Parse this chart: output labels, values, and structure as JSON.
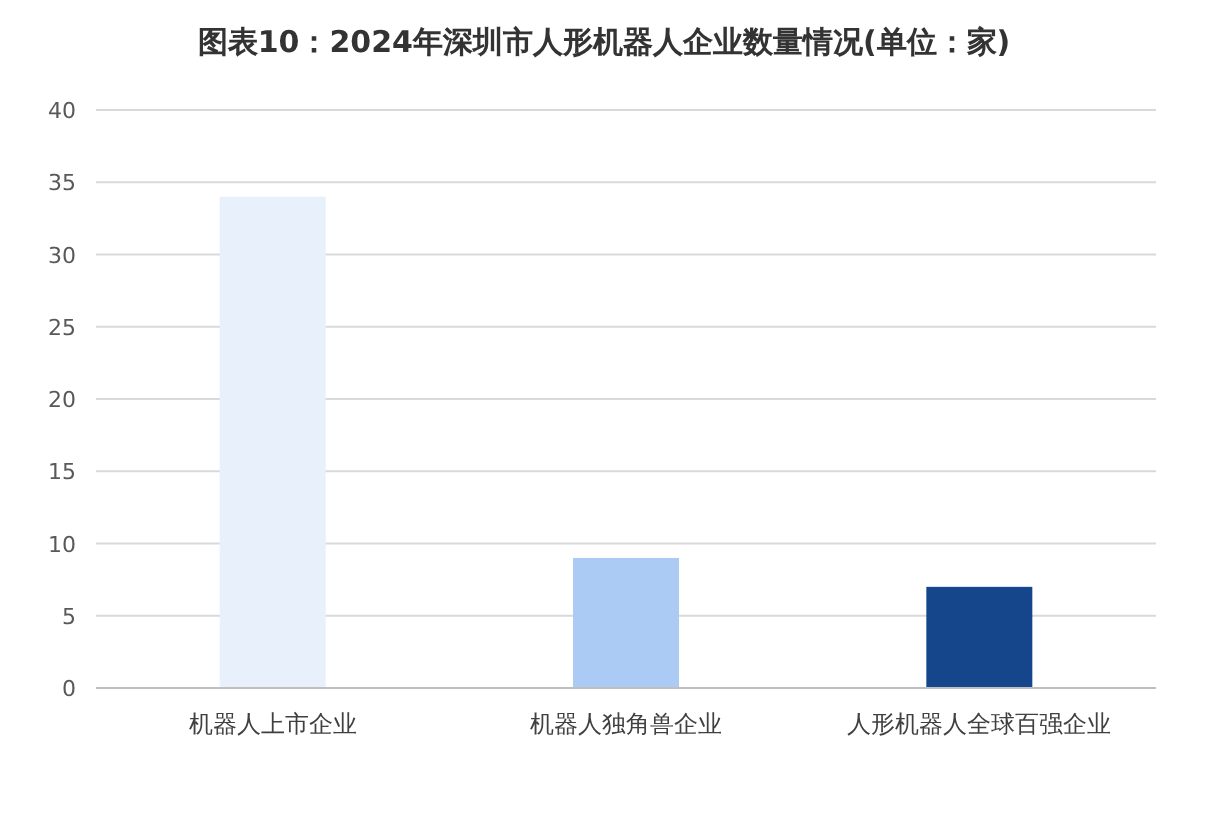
{
  "chart_data": {
    "type": "bar",
    "title": "图表10：2024年深圳市人形机器人企业数量情况(单位：家)",
    "categories": [
      "机器人上市企业",
      "机器人独角兽企业",
      "人形机器人全球百强企业"
    ],
    "values": [
      34,
      9,
      7
    ],
    "colors": [
      "#e8f0fb",
      "#abcbf5",
      "#15458b"
    ],
    "ylim": [
      0,
      40
    ],
    "yticks": [
      0,
      5,
      10,
      15,
      20,
      25,
      30,
      35,
      40
    ],
    "grid": "y"
  }
}
